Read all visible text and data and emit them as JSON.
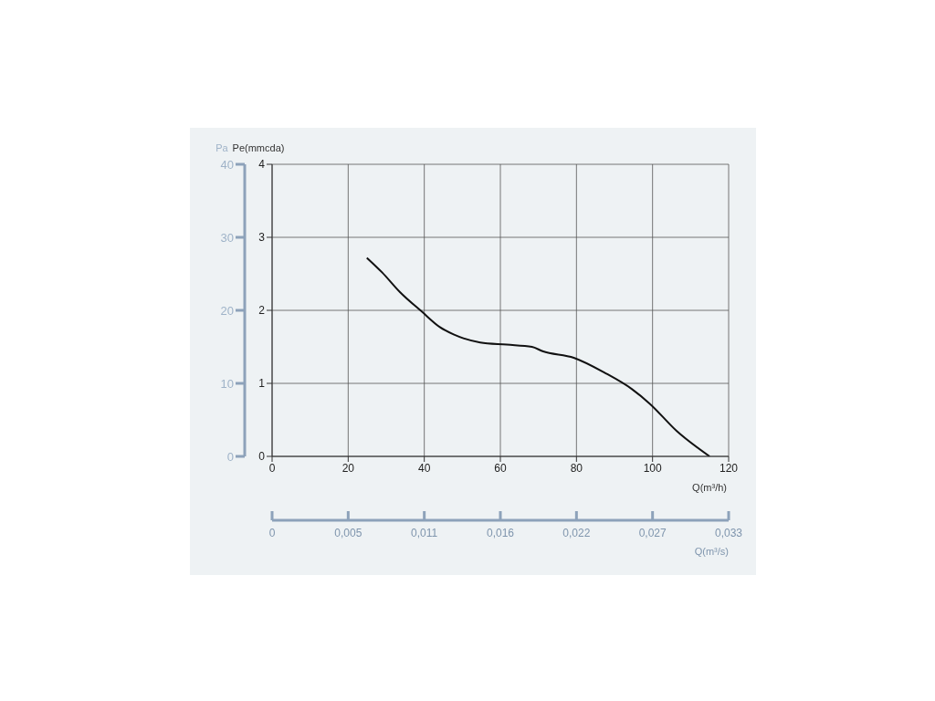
{
  "chart_data": {
    "type": "line",
    "xlabel": "Q(m³/h)",
    "ylabel": "Pe(mmcda)",
    "y2label": "Pa",
    "x2label": "Q(m³/s)",
    "x": [
      24.9,
      28.9,
      33.6,
      39.4,
      44.1,
      47.7,
      54.7,
      61.7,
      68.3,
      71.1,
      79.3,
      87.6,
      94.6,
      99.3,
      106.3,
      115
    ],
    "series": [
      {
        "color": "#111111",
        "values": [
          2.72,
          2.52,
          2.25,
          1.98,
          1.77,
          1.67,
          1.56,
          1.53,
          1.5,
          1.44,
          1.35,
          1.14,
          0.92,
          0.72,
          0.35,
          0
        ]
      }
    ],
    "xlim": [
      0,
      120
    ],
    "xticks": [
      0,
      20,
      40,
      60,
      80,
      100,
      120
    ],
    "ylim": [
      0,
      4
    ],
    "yticks": [
      0,
      1,
      2,
      3,
      4
    ],
    "y2lim": [
      0,
      40
    ],
    "y2ticks": [
      0,
      10,
      20,
      30,
      40
    ],
    "x2lim": [
      0,
      0.033
    ],
    "x2ticks": [
      0,
      {
        "value": 0.0055,
        "label": "0,005"
      },
      {
        "value": 0.011,
        "label": "0,011"
      },
      {
        "value": 0.0165,
        "label": "0,016"
      },
      {
        "value": 0.022,
        "label": "0,022"
      },
      {
        "value": 0.0275,
        "label": "0,027"
      },
      {
        "value": 0.033,
        "label": "0,033"
      }
    ],
    "grid": true,
    "legend": false,
    "marker": "none",
    "line_style": "solid"
  }
}
